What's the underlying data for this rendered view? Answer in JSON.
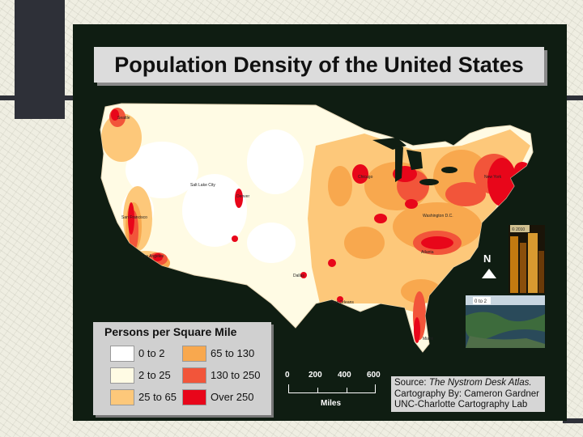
{
  "title": "Population Density of the United States",
  "legend": {
    "title": "Persons per Square Mile",
    "items": [
      {
        "label": "0 to 2",
        "color": "#ffffff"
      },
      {
        "label": "2 to 25",
        "color": "#fffbe4"
      },
      {
        "label": "25 to 65",
        "color": "#fdc87a"
      },
      {
        "label": "65 to 130",
        "color": "#f8a84e"
      },
      {
        "label": "130 to 250",
        "color": "#f2553a"
      },
      {
        "label": "Over 250",
        "color": "#e8061a"
      }
    ]
  },
  "scale": {
    "ticks": [
      "0",
      "200",
      "400",
      "600"
    ],
    "unit": "Miles"
  },
  "source": {
    "prefix": "Source: ",
    "publication": "The Nystrom Desk Atlas.",
    "line2": "Cartography By: Cameron Gardner",
    "line3": "UNC-Charlotte Cartography Lab"
  },
  "north_label": "N",
  "cities": [
    "Seattle",
    "Salt Lake City",
    "Denver",
    "San Francisco",
    "Los Angeles",
    "Dallas",
    "New Orleans",
    "Chicago",
    "Washington D.C.",
    "New York",
    "Atlanta",
    "Miami"
  ],
  "photo_captions": {
    "night": "© 2010",
    "satellite": "0 to 2"
  },
  "colors": {
    "frame": "#0f1d12",
    "slide_bar": "#2e3038",
    "background": "#efeee2"
  }
}
